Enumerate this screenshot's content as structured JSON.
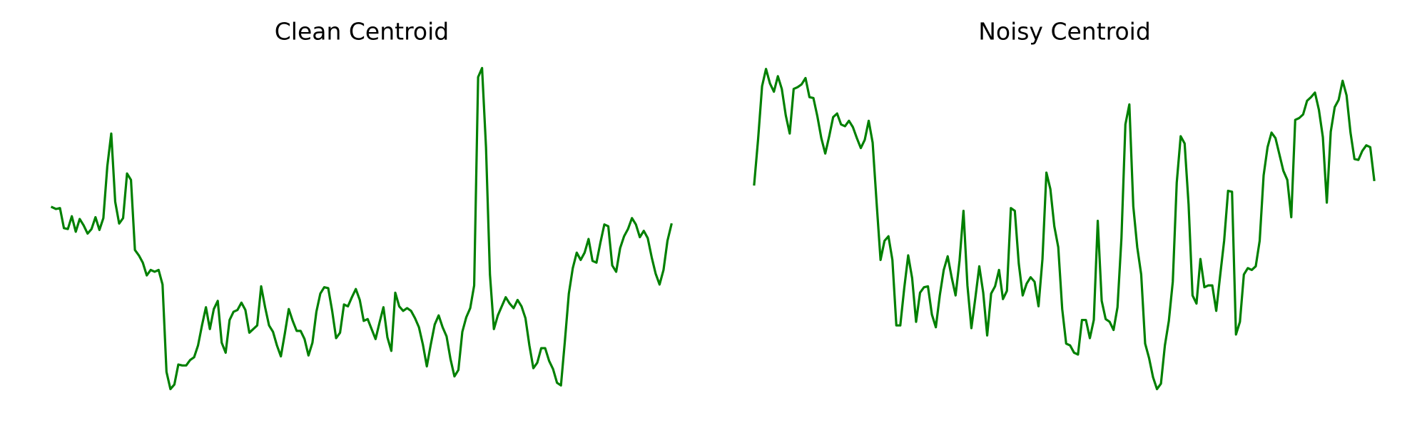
{
  "chart_data": [
    {
      "type": "line",
      "title": "Clean Centroid",
      "color": "#008000",
      "ylim": [
        0,
        360
      ],
      "values": [
        202,
        200,
        201,
        179,
        178,
        192,
        175,
        189,
        182,
        173,
        178,
        191,
        177,
        190,
        247,
        283,
        208,
        184,
        190,
        239,
        232,
        155,
        149,
        141,
        127,
        133,
        131,
        133,
        117,
        21,
        2,
        7,
        29,
        28,
        28,
        34,
        37,
        50,
        72,
        92,
        68,
        90,
        99,
        53,
        42,
        78,
        87,
        89,
        97,
        89,
        64,
        68,
        72,
        115,
        92,
        72,
        65,
        50,
        38,
        63,
        90,
        77,
        66,
        66,
        57,
        39,
        53,
        87,
        107,
        114,
        113,
        88,
        58,
        64,
        95,
        93,
        103,
        112,
        100,
        77,
        79,
        68,
        57,
        75,
        92,
        59,
        44,
        108,
        93,
        88,
        91,
        88,
        80,
        70,
        51,
        27,
        51,
        73,
        83,
        70,
        60,
        35,
        16,
        23,
        65,
        81,
        91,
        116,
        345,
        355,
        268,
        128,
        68,
        83,
        93,
        103,
        96,
        91,
        100,
        93,
        80,
        50,
        25,
        31,
        47,
        47,
        33,
        24,
        9,
        6,
        55,
        107,
        135,
        152,
        144,
        152,
        167,
        143,
        141,
        163,
        183,
        181,
        138,
        131,
        157,
        170,
        178,
        190,
        183,
        169,
        176,
        168,
        147,
        129,
        117,
        133,
        165,
        183
      ]
    },
    {
      "type": "line",
      "title": "Noisy Centroid",
      "color": "#008000",
      "ylim": [
        0,
        360
      ],
      "values": [
        227,
        277,
        335,
        354,
        338,
        329,
        346,
        332,
        303,
        283,
        332,
        334,
        337,
        344,
        323,
        322,
        302,
        278,
        261,
        280,
        301,
        305,
        293,
        291,
        297,
        290,
        278,
        267,
        276,
        297,
        273,
        207,
        144,
        165,
        170,
        144,
        72,
        72,
        113,
        149,
        124,
        76,
        108,
        114,
        115,
        84,
        70,
        105,
        133,
        148,
        125,
        105,
        143,
        198,
        116,
        69,
        102,
        137,
        108,
        61,
        107,
        115,
        133,
        101,
        110,
        201,
        198,
        140,
        105,
        118,
        125,
        120,
        93,
        145,
        240,
        222,
        181,
        158,
        90,
        52,
        50,
        42,
        40,
        78,
        78,
        58,
        78,
        187,
        99,
        79,
        76,
        67,
        92,
        168,
        293,
        315,
        203,
        158,
        128,
        52,
        36,
        15,
        2,
        8,
        50,
        77,
        120,
        229,
        280,
        272,
        205,
        105,
        96,
        145,
        114,
        116,
        116,
        88,
        127,
        165,
        220,
        219,
        62,
        76,
        128,
        135,
        133,
        137,
        165,
        237,
        268,
        284,
        278,
        260,
        242,
        232,
        191,
        298,
        300,
        304,
        319,
        323,
        328,
        309,
        279,
        207,
        285,
        312,
        320,
        341,
        325,
        284,
        255,
        254,
        264,
        270,
        268,
        232
      ]
    }
  ]
}
